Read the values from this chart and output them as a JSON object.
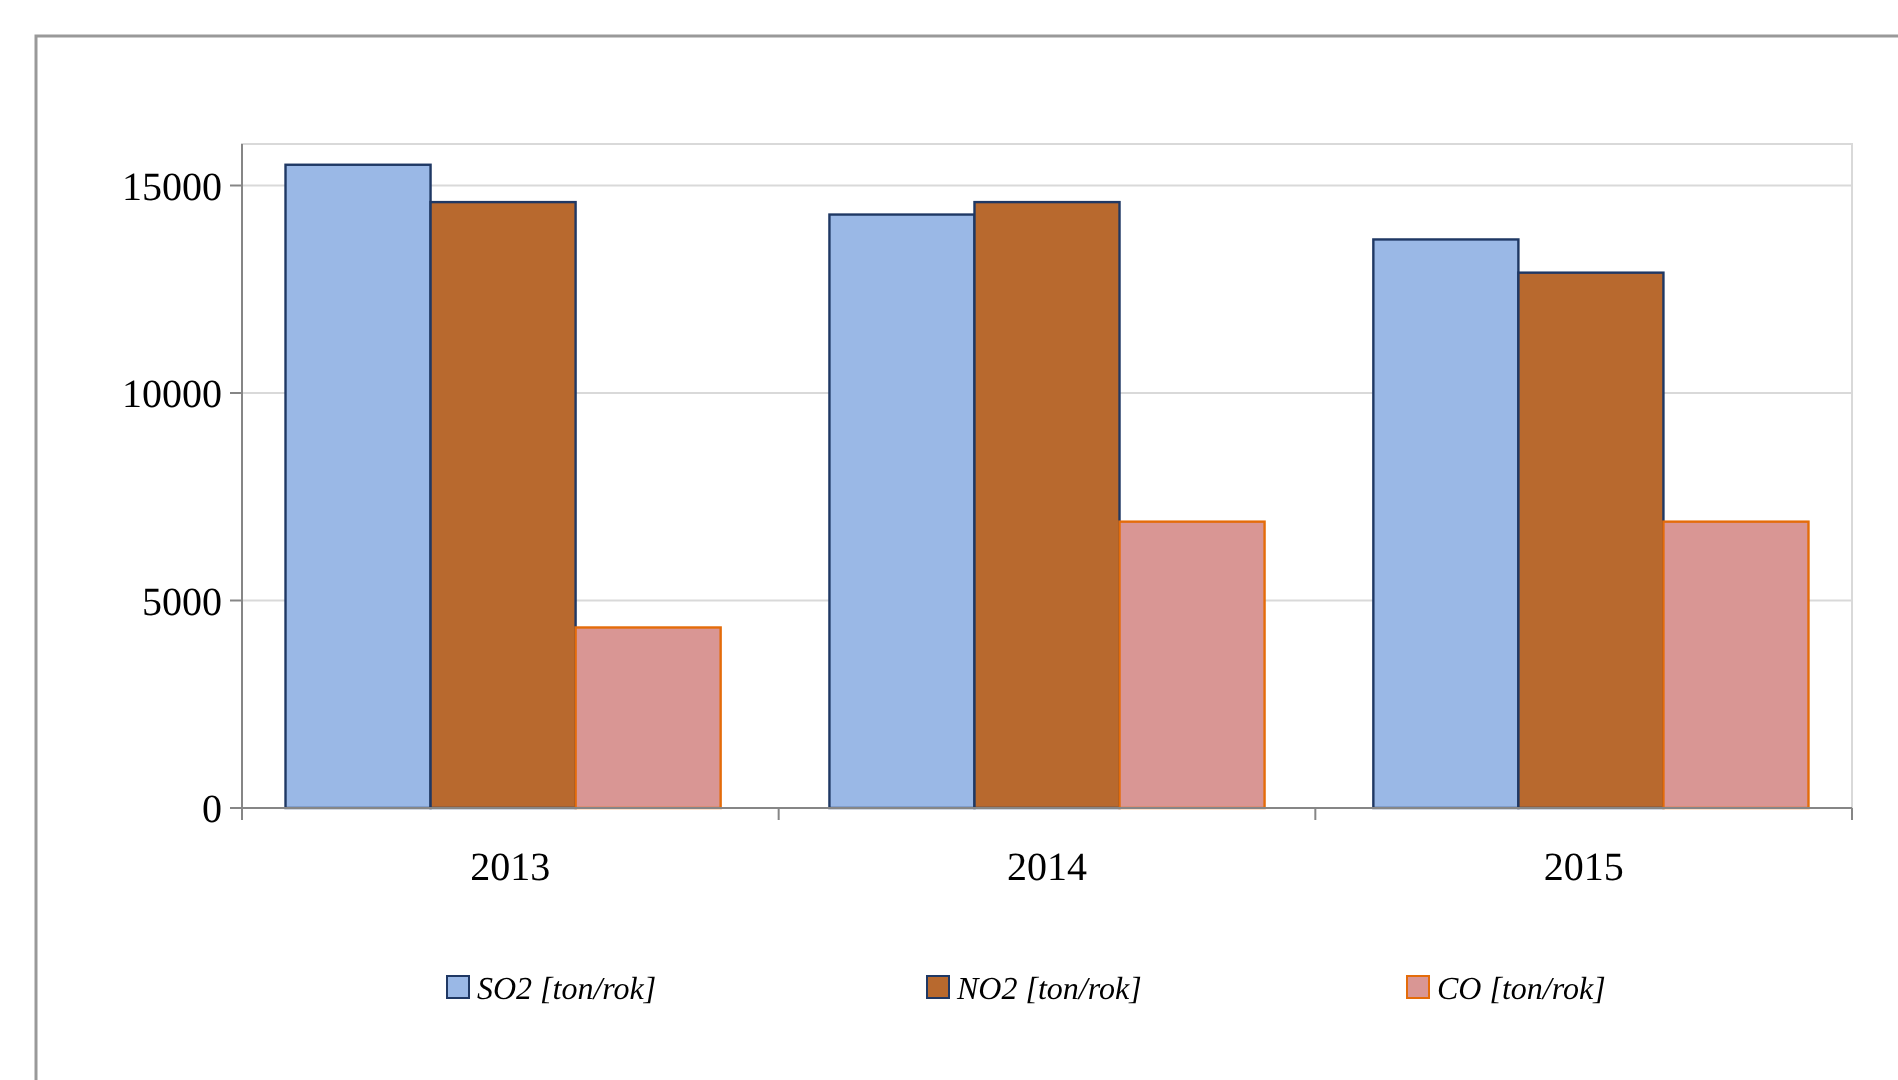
{
  "chart_data": {
    "type": "bar",
    "categories": [
      "2013",
      "2014",
      "2015"
    ],
    "series": [
      {
        "name": "SO2 [ton/rok]",
        "color": "#9ab8e6",
        "values": [
          15500,
          14300,
          13700
        ]
      },
      {
        "name": "NO2 [ton/rok]",
        "color": "#b8692e",
        "values": [
          14600,
          14600,
          12900
        ]
      },
      {
        "name": "CO [ton/rok]",
        "color": "#d99694",
        "values": [
          4350,
          6900,
          6900
        ]
      }
    ],
    "ylim": [
      0,
      16000
    ],
    "yticks": [
      0,
      5000,
      10000,
      15000
    ],
    "grid": "y",
    "legend": "bottom"
  }
}
